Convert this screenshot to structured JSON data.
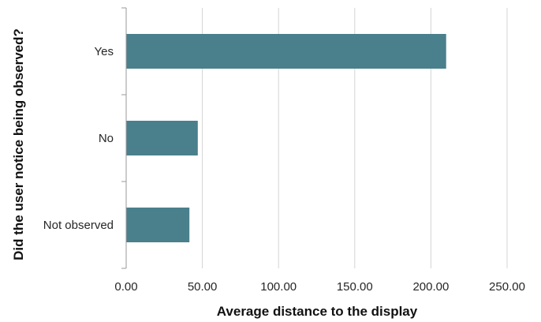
{
  "chart_data": {
    "type": "bar",
    "orientation": "horizontal",
    "categories": [
      "Yes",
      "No",
      "Not observed"
    ],
    "values": [
      210.0,
      47.0,
      41.5
    ],
    "title": "",
    "xlabel": "Average distance to the display",
    "ylabel": "Did the user notice being observed?",
    "xlim": [
      0,
      250
    ],
    "xticks": [
      0,
      50,
      100,
      150,
      200,
      250
    ],
    "xtick_labels": [
      "0.00",
      "50.00",
      "100.00",
      "150.00",
      "200.00",
      "250.00"
    ],
    "grid": "vertical",
    "legend": "none",
    "colors": {
      "bar": "#4a808c",
      "grid": "#d4d4d4",
      "axis": "#9a9a9a"
    }
  }
}
